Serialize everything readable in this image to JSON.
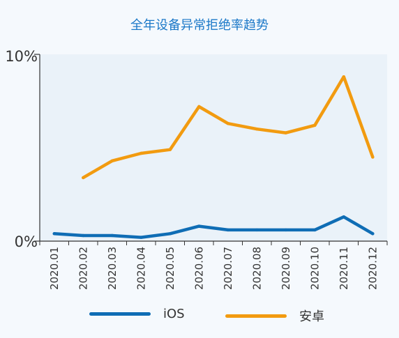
{
  "colors": {
    "ios": "#0f6db5",
    "android": "#f29b10",
    "plot_bg": "#eaf2f9",
    "axis": "#333333"
  },
  "chart_data": {
    "type": "line",
    "title": "全年设备异常拒绝率趋势",
    "categories": [
      "2020.01",
      "2020.02",
      "2020.03",
      "2020.04",
      "2020.05",
      "2020.06",
      "2020.07",
      "2020.08",
      "2020.09",
      "2020.10",
      "2020.11",
      "2020.12"
    ],
    "y_ticks": [
      "0%",
      "10%"
    ],
    "ylim": [
      0,
      10
    ],
    "legend_position": "bottom",
    "grid": false,
    "series": [
      {
        "name": "iOS",
        "color": "#0f6db5",
        "values": [
          0.4,
          0.3,
          0.3,
          0.2,
          0.4,
          0.8,
          0.6,
          0.6,
          0.6,
          0.6,
          1.3,
          0.4
        ]
      },
      {
        "name": "安卓",
        "color": "#f29b10",
        "values": [
          null,
          3.4,
          4.3,
          4.7,
          4.9,
          7.2,
          6.3,
          6.0,
          5.8,
          6.2,
          8.8,
          4.5
        ]
      }
    ]
  }
}
